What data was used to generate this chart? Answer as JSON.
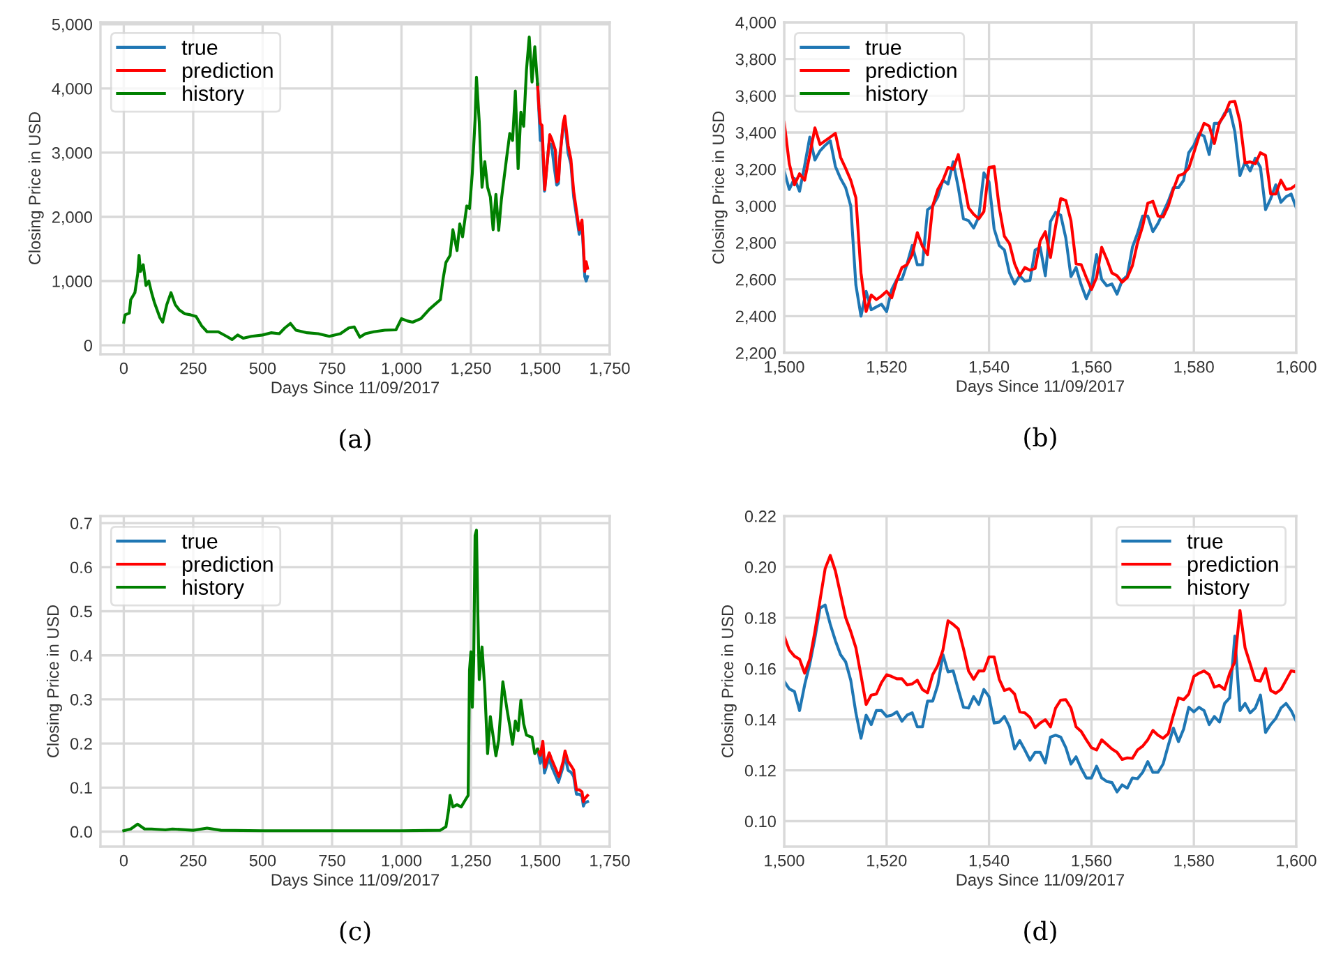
{
  "chart_data": [
    {
      "type": "line",
      "title": "(a)",
      "xlabel": "Days Since 11/09/2017",
      "ylabel": "Closing Price in USD",
      "xlim": [
        -84,
        1750
      ],
      "ylim": [
        -140,
        5030
      ],
      "xticks": [
        0,
        250,
        500,
        750,
        {
          "value": 1000,
          "label": "1,000"
        },
        {
          "value": 1250,
          "label": "1,250"
        },
        {
          "value": 1500,
          "label": "1,500"
        },
        {
          "value": 1750,
          "label": "1,750"
        }
      ],
      "yticks": [
        0,
        {
          "value": 1000,
          "label": "1,000"
        },
        {
          "value": 2000,
          "label": "2,000"
        },
        {
          "value": 3000,
          "label": "3,000"
        },
        {
          "value": 4000,
          "label": "4,000"
        },
        {
          "value": 5000,
          "label": "5,000"
        }
      ],
      "grid": true,
      "legend": "top left",
      "series": [
        {
          "name": "true",
          "color": "#1f77b4",
          "x": [
            1490,
            1495,
            1500,
            1505,
            1515,
            1531,
            1540,
            1550,
            1559,
            1565,
            1570,
            1580,
            1587,
            1600,
            1610,
            1620,
            1630,
            1640,
            1650,
            1660,
            1665,
            1670
          ],
          "values": [
            4065,
            3630,
            3190,
            3375,
            2400,
            3140,
            3130,
            2775,
            2495,
            2520,
            2945,
            3330,
            3525,
            2990,
            2825,
            2310,
            2020,
            1730,
            1875,
            1070,
            1000,
            1070
          ]
        },
        {
          "name": "prediction",
          "color": "#ff0000",
          "x": [
            1490,
            1495,
            1500,
            1506,
            1516,
            1534,
            1541,
            1554,
            1560,
            1566,
            1570,
            1582,
            1588,
            1600,
            1610,
            1620,
            1630,
            1640,
            1650,
            1660,
            1665,
            1670
          ],
          "values": [
            4065,
            3700,
            3455,
            3425,
            2425,
            3280,
            3215,
            3040,
            2545,
            2585,
            2890,
            3450,
            3570,
            3115,
            2900,
            2400,
            2100,
            1800,
            1950,
            1150,
            1300,
            1200
          ]
        },
        {
          "name": "history",
          "color": "#008000",
          "x": [
            0,
            5,
            20,
            25,
            40,
            50,
            55,
            60,
            70,
            80,
            90,
            100,
            110,
            130,
            140,
            155,
            170,
            185,
            200,
            220,
            240,
            260,
            280,
            300,
            340,
            370,
            390,
            410,
            430,
            460,
            500,
            530,
            560,
            580,
            600,
            620,
            660,
            700,
            740,
            780,
            810,
            830,
            850,
            870,
            900,
            940,
            980,
            1000,
            1020,
            1040,
            1070,
            1100,
            1120,
            1140,
            1150,
            1160,
            1175,
            1185,
            1200,
            1210,
            1220,
            1235,
            1245,
            1255,
            1265,
            1270,
            1280,
            1290,
            1300,
            1310,
            1320,
            1330,
            1340,
            1350,
            1360,
            1380,
            1390,
            1400,
            1410,
            1420,
            1430,
            1440,
            1450,
            1460,
            1470,
            1480,
            1490
          ],
          "values": [
            360,
            475,
            500,
            710,
            820,
            1110,
            1400,
            1150,
            1255,
            930,
            1000,
            820,
            670,
            430,
            360,
            635,
            820,
            635,
            550,
            490,
            475,
            450,
            305,
            210,
            210,
            140,
            90,
            160,
            110,
            140,
            160,
            195,
            180,
            270,
            340,
            235,
            195,
            180,
            140,
            180,
            270,
            285,
            125,
            180,
            210,
            235,
            240,
            415,
            380,
            360,
            415,
            560,
            635,
            710,
            1040,
            1290,
            1400,
            1800,
            1475,
            1890,
            1690,
            2170,
            2130,
            2680,
            3520,
            4175,
            3480,
            2460,
            2860,
            2460,
            2310,
            1800,
            2350,
            1790,
            2280,
            2970,
            3300,
            3190,
            3960,
            2750,
            3630,
            3410,
            4285,
            4800,
            4100,
            4650,
            4065
          ]
        }
      ]
    },
    {
      "type": "line",
      "title": "(b)",
      "xlabel": "Days Since 11/09/2017",
      "ylabel": "Closing Price in USD",
      "xlim": [
        1500,
        1600
      ],
      "ylim": [
        2200,
        4000
      ],
      "xticks": [
        {
          "value": 1500,
          "label": "1,500"
        },
        {
          "value": 1520,
          "label": "1,520"
        },
        {
          "value": 1540,
          "label": "1,540"
        },
        {
          "value": 1560,
          "label": "1,560"
        },
        {
          "value": 1580,
          "label": "1,580"
        },
        {
          "value": 1600,
          "label": "1,600"
        }
      ],
      "yticks": [
        {
          "value": 2200,
          "label": "2,200"
        },
        {
          "value": 2400,
          "label": "2,400"
        },
        {
          "value": 2600,
          "label": "2,600"
        },
        {
          "value": 2800,
          "label": "2,800"
        },
        {
          "value": 3000,
          "label": "3,000"
        },
        {
          "value": 3200,
          "label": "3,200"
        },
        {
          "value": 3400,
          "label": "3,400"
        },
        {
          "value": 3600,
          "label": "3,600"
        },
        {
          "value": 3800,
          "label": "3,800"
        },
        {
          "value": 4000,
          "label": "4,000"
        }
      ],
      "grid": true,
      "legend": "top left",
      "series": [
        {
          "name": "true",
          "color": "#1f77b4",
          "x": [
            1500,
            1501,
            1502,
            1503,
            1504,
            1505,
            1506,
            1507,
            1508,
            1509,
            1510,
            1511,
            1512,
            1513,
            1514,
            1515,
            1516,
            1517,
            1518,
            1519,
            1520,
            1521,
            1522,
            1523,
            1524,
            1525,
            1526,
            1527,
            1528,
            1529,
            1530,
            1531,
            1532,
            1533,
            1534,
            1535,
            1536,
            1537,
            1538,
            1539,
            1540,
            1541,
            1542,
            1543,
            1544,
            1545,
            1546,
            1547,
            1548,
            1549,
            1550,
            1551,
            1552,
            1553,
            1554,
            1555,
            1556,
            1557,
            1558,
            1559,
            1560,
            1561,
            1562,
            1563,
            1564,
            1565,
            1566,
            1567,
            1568,
            1569,
            1570,
            1571,
            1572,
            1573,
            1574,
            1575,
            1576,
            1577,
            1578,
            1579,
            1580,
            1581,
            1582,
            1583,
            1584,
            1585,
            1586,
            1587,
            1588,
            1589,
            1590,
            1591,
            1592,
            1593,
            1594,
            1595,
            1596,
            1597,
            1598,
            1599,
            1600
          ],
          "values": [
            3190,
            3090,
            3150,
            3080,
            3220,
            3375,
            3250,
            3300,
            3330,
            3355,
            3215,
            3150,
            3100,
            3000,
            2570,
            2400,
            2535,
            2435,
            2450,
            2465,
            2425,
            2545,
            2600,
            2600,
            2685,
            2785,
            2680,
            2680,
            2980,
            3000,
            3050,
            3140,
            3120,
            3240,
            3100,
            2930,
            2920,
            2880,
            2940,
            3180,
            3130,
            2875,
            2785,
            2760,
            2635,
            2575,
            2620,
            2590,
            2595,
            2760,
            2775,
            2620,
            2915,
            2965,
            2950,
            2825,
            2615,
            2665,
            2570,
            2495,
            2560,
            2735,
            2600,
            2565,
            2575,
            2520,
            2595,
            2620,
            2775,
            2850,
            2945,
            2945,
            2860,
            2905,
            2965,
            3025,
            3100,
            3100,
            3140,
            3290,
            3330,
            3395,
            3380,
            3280,
            3450,
            3450,
            3505,
            3525,
            3405,
            3165,
            3240,
            3190,
            3260,
            3210,
            2980,
            3040,
            3115,
            3020,
            3050,
            3065,
            2990
          ]
        },
        {
          "name": "prediction",
          "color": "#ff0000",
          "x": [
            1500,
            1501,
            1502,
            1503,
            1504,
            1505,
            1506,
            1507,
            1508,
            1509,
            1510,
            1511,
            1512,
            1513,
            1514,
            1515,
            1516,
            1517,
            1518,
            1519,
            1520,
            1521,
            1522,
            1523,
            1524,
            1525,
            1526,
            1527,
            1528,
            1529,
            1530,
            1531,
            1532,
            1533,
            1534,
            1535,
            1536,
            1537,
            1538,
            1539,
            1540,
            1541,
            1542,
            1543,
            1544,
            1545,
            1546,
            1547,
            1548,
            1549,
            1550,
            1551,
            1552,
            1553,
            1554,
            1555,
            1556,
            1557,
            1558,
            1559,
            1560,
            1561,
            1562,
            1563,
            1564,
            1565,
            1566,
            1567,
            1568,
            1569,
            1570,
            1571,
            1572,
            1573,
            1574,
            1575,
            1576,
            1577,
            1578,
            1579,
            1580,
            1581,
            1582,
            1583,
            1584,
            1585,
            1586,
            1587,
            1588,
            1589,
            1590,
            1591,
            1592,
            1593,
            1594,
            1595,
            1596,
            1597,
            1598,
            1599,
            1600
          ],
          "values": [
            3455,
            3230,
            3115,
            3175,
            3140,
            3280,
            3425,
            3335,
            3355,
            3375,
            3395,
            3265,
            3205,
            3140,
            3045,
            2635,
            2425,
            2515,
            2490,
            2510,
            2535,
            2500,
            2595,
            2665,
            2680,
            2735,
            2855,
            2780,
            2735,
            3000,
            3090,
            3140,
            3210,
            3200,
            3280,
            3140,
            2990,
            2955,
            2930,
            2970,
            3210,
            3215,
            2990,
            2835,
            2795,
            2685,
            2620,
            2665,
            2650,
            2660,
            2810,
            2860,
            2720,
            2890,
            3040,
            3030,
            2920,
            2685,
            2680,
            2610,
            2545,
            2610,
            2775,
            2710,
            2635,
            2620,
            2585,
            2610,
            2675,
            2800,
            2890,
            3015,
            3025,
            2945,
            2940,
            3000,
            3090,
            3165,
            3175,
            3205,
            3290,
            3380,
            3450,
            3435,
            3340,
            3455,
            3495,
            3565,
            3570,
            3460,
            3235,
            3240,
            3230,
            3290,
            3275,
            3065,
            3065,
            3140,
            3090,
            3095,
            3115
          ]
        },
        {
          "name": "history",
          "color": "#008000"
        }
      ]
    },
    {
      "type": "line",
      "title": "(c)",
      "xlabel": "Days Since 11/09/2017",
      "ylabel": "Closing Price in USD",
      "xlim": [
        -84,
        1750
      ],
      "ylim": [
        -0.034,
        0.716
      ],
      "xticks": [
        0,
        250,
        500,
        750,
        {
          "value": 1000,
          "label": "1,000"
        },
        {
          "value": 1250,
          "label": "1,250"
        },
        {
          "value": 1500,
          "label": "1,500"
        },
        {
          "value": 1750,
          "label": "1,750"
        }
      ],
      "yticks": [
        {
          "value": 0,
          "label": "0.0"
        },
        0.1,
        0.2,
        0.3,
        0.4,
        0.5,
        0.6,
        0.7
      ],
      "grid": true,
      "legend": "top left",
      "series": [
        {
          "name": "true",
          "color": "#1f77b4",
          "x": [
            1490,
            1500,
            1509,
            1515,
            1531,
            1540,
            1565,
            1580,
            1588,
            1600,
            1610,
            1620,
            1630,
            1640,
            1650,
            1655,
            1660,
            1670
          ],
          "values": [
            0.187,
            0.155,
            0.177,
            0.133,
            0.166,
            0.149,
            0.112,
            0.143,
            0.173,
            0.139,
            0.135,
            0.125,
            0.085,
            0.085,
            0.08,
            0.058,
            0.065,
            0.068
          ]
        },
        {
          "name": "prediction",
          "color": "#ff0000",
          "x": [
            1490,
            1500,
            1509,
            1516,
            1532,
            1540,
            1567,
            1582,
            1589,
            1600,
            1610,
            1620,
            1630,
            1640,
            1650,
            1655,
            1660,
            1670
          ],
          "values": [
            0.187,
            0.173,
            0.205,
            0.146,
            0.179,
            0.165,
            0.125,
            0.159,
            0.183,
            0.159,
            0.15,
            0.14,
            0.095,
            0.095,
            0.09,
            0.068,
            0.075,
            0.082
          ]
        },
        {
          "name": "history",
          "color": "#008000",
          "x": [
            0,
            25,
            50,
            75,
            100,
            150,
            175,
            250,
            300,
            350,
            500,
            750,
            1000,
            1140,
            1160,
            1170,
            1175,
            1185,
            1200,
            1215,
            1230,
            1240,
            1245,
            1250,
            1255,
            1260,
            1265,
            1270,
            1275,
            1280,
            1290,
            1300,
            1310,
            1320,
            1340,
            1350,
            1365,
            1380,
            1390,
            1400,
            1410,
            1420,
            1430,
            1440,
            1450,
            1470,
            1480,
            1490
          ],
          "values": [
            0.002,
            0.006,
            0.017,
            0.006,
            0.006,
            0.004,
            0.006,
            0.003,
            0.008,
            0.003,
            0.002,
            0.002,
            0.002,
            0.003,
            0.011,
            0.05,
            0.082,
            0.056,
            0.061,
            0.056,
            0.072,
            0.082,
            0.366,
            0.408,
            0.282,
            0.387,
            0.672,
            0.684,
            0.493,
            0.345,
            0.419,
            0.324,
            0.177,
            0.261,
            0.172,
            0.208,
            0.34,
            0.277,
            0.24,
            0.198,
            0.251,
            0.229,
            0.298,
            0.245,
            0.219,
            0.214,
            0.177,
            0.187
          ]
        }
      ]
    },
    {
      "type": "line",
      "title": "(d)",
      "xlabel": "Days Since 11/09/2017",
      "ylabel": "Closing Price in USD",
      "xlim": [
        1500,
        1600
      ],
      "ylim": [
        0.09,
        0.22
      ],
      "xticks": [
        {
          "value": 1500,
          "label": "1,500"
        },
        {
          "value": 1520,
          "label": "1,520"
        },
        {
          "value": 1540,
          "label": "1,540"
        },
        {
          "value": 1560,
          "label": "1,560"
        },
        {
          "value": 1580,
          "label": "1,580"
        },
        {
          "value": 1600,
          "label": "1,600"
        }
      ],
      "yticks": [
        {
          "value": 0.1,
          "label": "0.10"
        },
        0.12,
        0.14,
        0.16,
        0.18,
        {
          "value": 0.2,
          "label": "0.20"
        },
        0.22
      ],
      "grid": true,
      "legend": "top right",
      "series": [
        {
          "name": "true",
          "color": "#1f77b4",
          "x": [
            1500,
            1501,
            1502,
            1503,
            1504,
            1505,
            1506,
            1507,
            1508,
            1509,
            1510,
            1511,
            1512,
            1513,
            1514,
            1515,
            1516,
            1517,
            1518,
            1519,
            1520,
            1521,
            1522,
            1523,
            1524,
            1525,
            1526,
            1527,
            1528,
            1529,
            1530,
            1531,
            1532,
            1533,
            1534,
            1535,
            1536,
            1537,
            1538,
            1539,
            1540,
            1541,
            1542,
            1543,
            1544,
            1545,
            1546,
            1547,
            1548,
            1549,
            1550,
            1551,
            1552,
            1553,
            1554,
            1555,
            1556,
            1557,
            1558,
            1559,
            1560,
            1561,
            1562,
            1563,
            1564,
            1565,
            1566,
            1567,
            1568,
            1569,
            1570,
            1571,
            1572,
            1573,
            1574,
            1575,
            1576,
            1577,
            1578,
            1579,
            1580,
            1581,
            1582,
            1583,
            1584,
            1585,
            1586,
            1587,
            1588,
            1589,
            1590,
            1591,
            1592,
            1593,
            1594,
            1595,
            1596,
            1597,
            1598,
            1599,
            1600
          ],
          "values": [
            0.155,
            0.152,
            0.151,
            0.1435,
            0.1536,
            0.1618,
            0.172,
            0.1838,
            0.185,
            0.1774,
            0.171,
            0.1655,
            0.1627,
            0.1554,
            0.1426,
            0.1326,
            0.1417,
            0.138,
            0.1435,
            0.1435,
            0.1412,
            0.1417,
            0.143,
            0.1393,
            0.1417,
            0.1426,
            0.1371,
            0.1371,
            0.1472,
            0.1472,
            0.1536,
            0.1655,
            0.1587,
            0.1591,
            0.1518,
            0.1448,
            0.1445,
            0.149,
            0.1459,
            0.1518,
            0.149,
            0.1386,
            0.139,
            0.1412,
            0.1371,
            0.1284,
            0.1317,
            0.128,
            0.124,
            0.1271,
            0.1271,
            0.1229,
            0.1331,
            0.1338,
            0.1331,
            0.1289,
            0.1225,
            0.1253,
            0.1207,
            0.117,
            0.117,
            0.1216,
            0.117,
            0.1156,
            0.1152,
            0.1115,
            0.1143,
            0.113,
            0.117,
            0.1167,
            0.1192,
            0.1234,
            0.1192,
            0.1192,
            0.1225,
            0.1298,
            0.1366,
            0.1313,
            0.1362,
            0.1448,
            0.143,
            0.1448,
            0.1435,
            0.138,
            0.1412,
            0.139,
            0.1463,
            0.1485,
            0.1728,
            0.1435,
            0.1463,
            0.1426,
            0.1445,
            0.1496,
            0.1349,
            0.138,
            0.1404,
            0.1445,
            0.1463,
            0.1435,
            0.1393
          ]
        },
        {
          "name": "prediction",
          "color": "#ff0000",
          "x": [
            1500,
            1501,
            1502,
            1503,
            1504,
            1505,
            1506,
            1507,
            1508,
            1509,
            1510,
            1511,
            1512,
            1513,
            1514,
            1515,
            1516,
            1517,
            1518,
            1519,
            1520,
            1521,
            1522,
            1523,
            1524,
            1525,
            1526,
            1527,
            1528,
            1529,
            1530,
            1531,
            1532,
            1533,
            1534,
            1535,
            1536,
            1537,
            1538,
            1539,
            1540,
            1541,
            1542,
            1543,
            1544,
            1545,
            1546,
            1547,
            1548,
            1549,
            1550,
            1551,
            1552,
            1553,
            1554,
            1555,
            1556,
            1557,
            1558,
            1559,
            1560,
            1561,
            1562,
            1563,
            1564,
            1565,
            1566,
            1567,
            1568,
            1569,
            1570,
            1571,
            1572,
            1573,
            1574,
            1575,
            1576,
            1577,
            1578,
            1579,
            1580,
            1581,
            1582,
            1583,
            1584,
            1585,
            1586,
            1587,
            1588,
            1589,
            1590,
            1591,
            1592,
            1593,
            1594,
            1595,
            1596,
            1597,
            1598,
            1599,
            1600
          ],
          "values": [
            0.1728,
            0.1673,
            0.1649,
            0.1637,
            0.1582,
            0.1637,
            0.1746,
            0.1869,
            0.1993,
            0.2045,
            0.1984,
            0.1893,
            0.1801,
            0.1746,
            0.1682,
            0.1573,
            0.1459,
            0.1496,
            0.15,
            0.1545,
            0.1576,
            0.1569,
            0.156,
            0.156,
            0.1536,
            0.154,
            0.1554,
            0.1518,
            0.1505,
            0.1576,
            0.1613,
            0.1673,
            0.1788,
            0.1774,
            0.1756,
            0.1679,
            0.1591,
            0.1558,
            0.1591,
            0.1591,
            0.1646,
            0.1646,
            0.1558,
            0.1514,
            0.1521,
            0.15,
            0.143,
            0.1426,
            0.1408,
            0.1368,
            0.1386,
            0.1399,
            0.1371,
            0.1445,
            0.1476,
            0.1478,
            0.1445,
            0.1371,
            0.1353,
            0.132,
            0.1289,
            0.128,
            0.132,
            0.1302,
            0.1284,
            0.1271,
            0.1243,
            0.1249,
            0.1247,
            0.128,
            0.1295,
            0.132,
            0.1357,
            0.1338,
            0.1326,
            0.1344,
            0.1417,
            0.1485,
            0.1478,
            0.15,
            0.1569,
            0.1582,
            0.1591,
            0.1576,
            0.1527,
            0.1534,
            0.1518,
            0.1582,
            0.1627,
            0.1829,
            0.1682,
            0.1618,
            0.1554,
            0.1551,
            0.16,
            0.1514,
            0.1503,
            0.1518,
            0.1554,
            0.1591,
            0.1587
          ]
        },
        {
          "name": "history",
          "color": "#008000"
        }
      ]
    }
  ]
}
